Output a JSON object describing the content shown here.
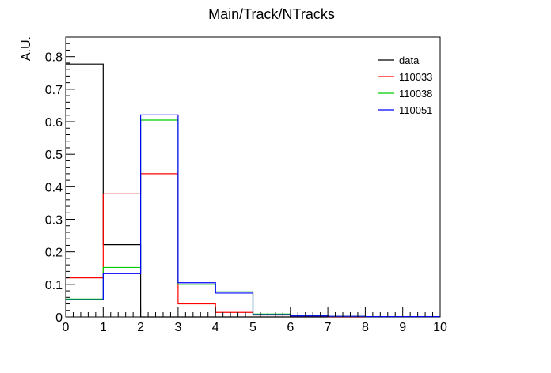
{
  "chart_data": {
    "type": "histogram",
    "title": "Main/Track/NTracks",
    "xlabel": "",
    "ylabel": "A.U.",
    "xlim": [
      0,
      10
    ],
    "ylim": [
      0,
      0.86
    ],
    "x_ticks": [
      "0",
      "1",
      "2",
      "3",
      "4",
      "5",
      "6",
      "7",
      "8",
      "9",
      "10"
    ],
    "y_ticks": [
      "0",
      "0.1",
      "0.2",
      "0.3",
      "0.4",
      "0.5",
      "0.6",
      "0.7",
      "0.8"
    ],
    "y_tick_values": [
      0,
      0.1,
      0.2,
      0.3,
      0.4,
      0.5,
      0.6,
      0.7,
      0.8
    ],
    "bin_edges": [
      0,
      1,
      2,
      3,
      4,
      5,
      6,
      7,
      8,
      9,
      10
    ],
    "grid": false,
    "legend_position": "top-right",
    "series": [
      {
        "name": "data",
        "color": "#000000",
        "values": [
          0.777,
          0.222,
          0,
          0,
          0,
          0,
          0,
          0,
          0,
          0
        ]
      },
      {
        "name": "110033",
        "color": "#ff0000",
        "values": [
          0.12,
          0.378,
          0.44,
          0.04,
          0.014,
          0.006,
          0.003,
          0.001,
          0.001,
          0.001
        ]
      },
      {
        "name": "110038",
        "color": "#00cc00",
        "values": [
          0.055,
          0.152,
          0.605,
          0.1,
          0.077,
          0.009,
          0.004,
          0.002,
          0.001,
          0.001
        ]
      },
      {
        "name": "110051",
        "color": "#0000ff",
        "values": [
          0.053,
          0.133,
          0.621,
          0.105,
          0.073,
          0.007,
          0.003,
          0.002,
          0.001,
          0.001
        ]
      }
    ]
  }
}
